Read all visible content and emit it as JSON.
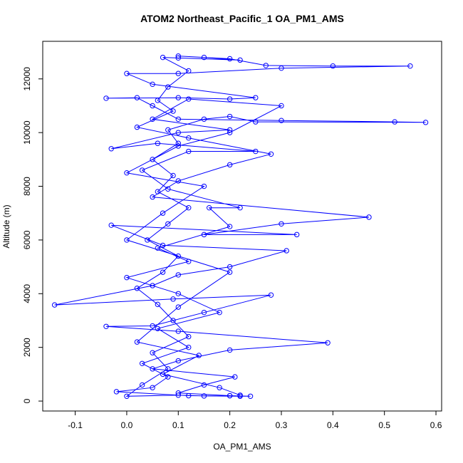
{
  "chart_data": {
    "type": "line",
    "title": "ATOM2 Northeast_Pacific_1 OA_PM1_AMS",
    "x_label": "OA_PM1_AMS",
    "y_label": "Altitude (m)",
    "color": "#0000ff",
    "markers": true,
    "xlim": [
      -0.163,
      0.611
    ],
    "ylim": [
      -370,
      13400
    ],
    "xticks": [
      -0.1,
      {
        "value": 0,
        "label": "0.0"
      },
      0.1,
      0.2,
      0.3,
      0.4,
      0.5,
      0.6
    ],
    "yticks": [
      0,
      2000,
      4000,
      6000,
      8000,
      10000,
      12000
    ],
    "x": [
      0.2,
      0.22,
      0.15,
      0.1,
      0.0,
      0.03,
      0.08,
      0.05,
      0.12,
      0.09,
      0.06,
      0.02,
      0.07,
      0.1,
      0.04,
      0.08,
      0.12,
      0.06,
      0.09,
      0.05,
      0.1,
      0.08,
      0.15,
      0.2,
      0.25,
      0.58,
      0.52,
      0.3,
      0.1,
      0.05,
      0.02,
      -0.04,
      0.1,
      0.2,
      0.25,
      0.05,
      0.0,
      0.1,
      0.3,
      0.55,
      0.4,
      0.27,
      0.2,
      0.1,
      0.15,
      0.22,
      0.1,
      0.07,
      0.12,
      0.08,
      0.06,
      0.09,
      0.02,
      0.12,
      0.28,
      0.2,
      0.1,
      0.05,
      0.47,
      0.3,
      0.15,
      0.33,
      -0.03,
      0.07,
      0.31,
      0.2,
      0.1,
      0.05,
      -0.14,
      0.09,
      0.28,
      0.15,
      0.05,
      -0.04,
      0.1,
      0.39,
      0.2,
      0.1,
      0.05,
      0.21,
      0.15,
      0.1,
      0.2,
      0.24,
      0.12,
      -0.02,
      0.05,
      0.08,
      0.03,
      0.12,
      0.06,
      0.18,
      0.1,
      0.0,
      0.12,
      0.06,
      0.2,
      0.16,
      0.22,
      0.08,
      0.03,
      0.12,
      0.25,
      0.06,
      -0.03,
      0.1,
      0.2,
      0.05,
      0.12,
      0.3,
      0.2,
      0.1,
      0.0,
      0.15,
      0.07,
      0.0,
      0.2,
      0.1,
      0.02,
      0.14,
      0.07,
      0.18,
      0.22
    ],
    "values": [
      200,
      180,
      190,
      220,
      180,
      600,
      1200,
      1800,
      2400,
      3000,
      3600,
      4200,
      4800,
      5400,
      6000,
      6600,
      7200,
      7800,
      8400,
      9000,
      9600,
      10100,
      10500,
      10600,
      10400,
      10380,
      10400,
      10450,
      10500,
      11000,
      11300,
      11280,
      11300,
      11250,
      11300,
      11800,
      12200,
      12200,
      12400,
      12480,
      12480,
      12500,
      12750,
      12850,
      12800,
      12700,
      12780,
      12800,
      12300,
      11700,
      11200,
      10800,
      10200,
      9800,
      9200,
      8800,
      8200,
      7600,
      6850,
      6600,
      6200,
      6200,
      6550,
      5800,
      5600,
      5000,
      4700,
      4300,
      3580,
      3800,
      3950,
      3300,
      2800,
      2780,
      2600,
      2170,
      1900,
      1500,
      1200,
      900,
      600,
      300,
      200,
      180,
      200,
      350,
      500,
      900,
      1400,
      2000,
      2700,
      3300,
      4000,
      4600,
      5200,
      5700,
      6500,
      7200,
      7200,
      7900,
      8600,
      9300,
      9300,
      9600,
      9400,
      10000,
      10100,
      10500,
      11250,
      11000,
      10000,
      9500,
      8500,
      8000,
      7000,
      6000,
      4800,
      3500,
      2200,
      1700,
      1000,
      500,
      220
    ]
  }
}
